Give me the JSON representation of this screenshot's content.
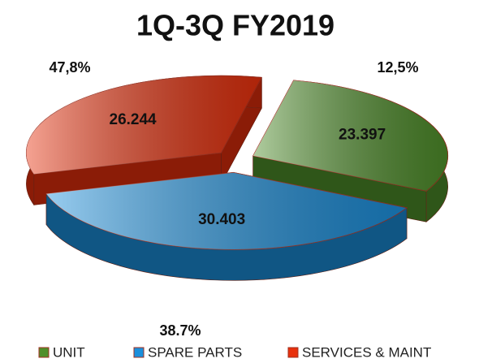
{
  "chart_data": {
    "type": "pie",
    "title": "1Q-3Q FY2019",
    "categories": [
      "UNIT",
      "SPARE PARTS",
      "SERVICES & MAINT"
    ],
    "values": [
      23397,
      30403,
      26244
    ],
    "value_labels": [
      "23.397",
      "30.403",
      "26.244"
    ],
    "annotations": [
      "12,5%",
      "38.7%",
      "47,8%"
    ],
    "colors": [
      "#4f8f2a",
      "#1b8fdc",
      "#e8300c"
    ],
    "legend": "bottom"
  }
}
